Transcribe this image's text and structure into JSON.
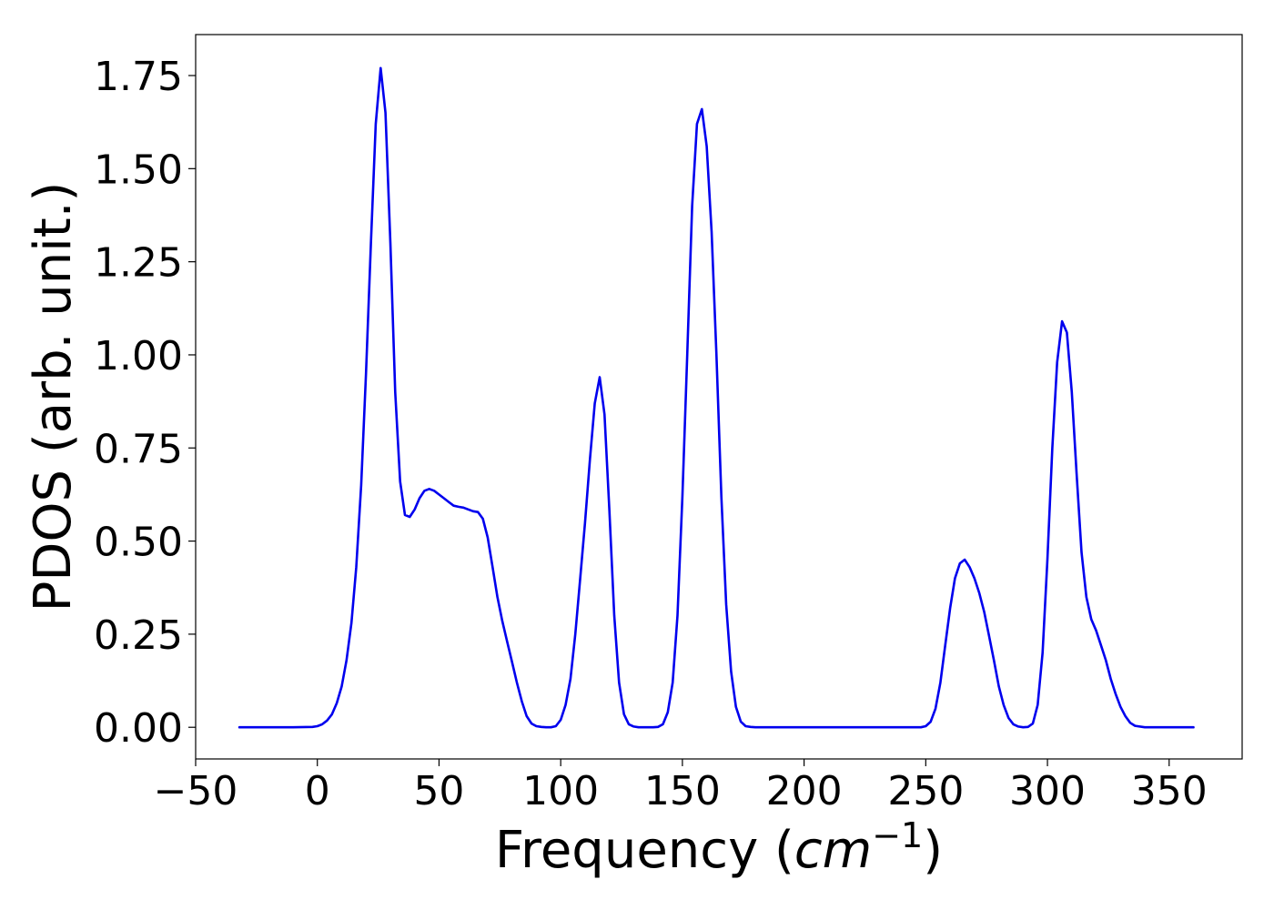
{
  "chart_data": {
    "type": "line",
    "title": "",
    "xlabel": "Frequency (",
    "xlabel_math": "cm",
    "xlabel_sup": "−1",
    "xlabel_close": ")",
    "ylabel": "PDOS (arb. unit.)",
    "xlim": [
      -50,
      380
    ],
    "ylim": [
      -0.085,
      1.86
    ],
    "grid": false,
    "xticks": [
      -50,
      0,
      50,
      100,
      150,
      200,
      250,
      300,
      350
    ],
    "xtick_labels": [
      "−50",
      "0",
      "50",
      "100",
      "150",
      "200",
      "250",
      "300",
      "350"
    ],
    "yticks": [
      0.0,
      0.25,
      0.5,
      0.75,
      1.0,
      1.25,
      1.5,
      1.75
    ],
    "ytick_labels": [
      "0.00",
      "0.25",
      "0.50",
      "0.75",
      "1.00",
      "1.25",
      "1.50",
      "1.75"
    ],
    "series": [
      {
        "color": "#0000ee",
        "x": [
          -32,
          -10,
          -2,
          0,
          2,
          4,
          6,
          8,
          10,
          12,
          14,
          16,
          18,
          20,
          22,
          24,
          26,
          28,
          30,
          32,
          34,
          36,
          38,
          40,
          42,
          44,
          46,
          48,
          50,
          52,
          54,
          56,
          58,
          60,
          62,
          64,
          66,
          68,
          70,
          72,
          74,
          76,
          78,
          80,
          82,
          84,
          86,
          88,
          90,
          92,
          94,
          96,
          98,
          100,
          102,
          104,
          106,
          108,
          110,
          112,
          114,
          116,
          118,
          120,
          122,
          124,
          126,
          128,
          130,
          132,
          134,
          136,
          138,
          140,
          142,
          144,
          146,
          148,
          150,
          152,
          154,
          156,
          158,
          160,
          162,
          164,
          166,
          168,
          170,
          172,
          174,
          176,
          178,
          180,
          182,
          184,
          186,
          188,
          190,
          220,
          248,
          250,
          252,
          254,
          256,
          258,
          260,
          262,
          264,
          266,
          268,
          270,
          272,
          274,
          276,
          278,
          280,
          282,
          284,
          286,
          288,
          290,
          292,
          294,
          296,
          298,
          300,
          302,
          304,
          306,
          308,
          310,
          312,
          314,
          316,
          318,
          320,
          322,
          324,
          326,
          328,
          330,
          332,
          334,
          336,
          340,
          360
        ],
        "y": [
          0.0,
          0.0,
          0.001,
          0.003,
          0.008,
          0.018,
          0.035,
          0.065,
          0.11,
          0.18,
          0.28,
          0.43,
          0.65,
          0.95,
          1.3,
          1.62,
          1.77,
          1.65,
          1.3,
          0.9,
          0.66,
          0.57,
          0.565,
          0.585,
          0.615,
          0.635,
          0.64,
          0.635,
          0.625,
          0.615,
          0.605,
          0.595,
          0.592,
          0.59,
          0.585,
          0.58,
          0.578,
          0.56,
          0.51,
          0.43,
          0.35,
          0.285,
          0.23,
          0.175,
          0.12,
          0.07,
          0.03,
          0.01,
          0.003,
          0.001,
          0.0,
          0.0,
          0.003,
          0.02,
          0.06,
          0.13,
          0.25,
          0.4,
          0.55,
          0.72,
          0.87,
          0.94,
          0.84,
          0.58,
          0.3,
          0.12,
          0.035,
          0.008,
          0.002,
          0.0,
          0.0,
          0.0,
          0.0,
          0.001,
          0.008,
          0.04,
          0.12,
          0.3,
          0.62,
          1.0,
          1.4,
          1.62,
          1.66,
          1.56,
          1.33,
          1.0,
          0.62,
          0.33,
          0.15,
          0.055,
          0.015,
          0.003,
          0.001,
          0.0,
          0.0,
          0.0,
          0.0,
          0.0,
          0.0,
          0.0,
          0.0,
          0.003,
          0.015,
          0.05,
          0.12,
          0.22,
          0.32,
          0.4,
          0.44,
          0.45,
          0.43,
          0.4,
          0.36,
          0.31,
          0.245,
          0.18,
          0.11,
          0.06,
          0.025,
          0.008,
          0.002,
          0.0,
          0.001,
          0.01,
          0.06,
          0.2,
          0.45,
          0.75,
          0.98,
          1.09,
          1.06,
          0.9,
          0.68,
          0.47,
          0.35,
          0.29,
          0.26,
          0.22,
          0.18,
          0.13,
          0.09,
          0.055,
          0.03,
          0.012,
          0.004,
          0.0,
          0.0
        ]
      }
    ]
  }
}
